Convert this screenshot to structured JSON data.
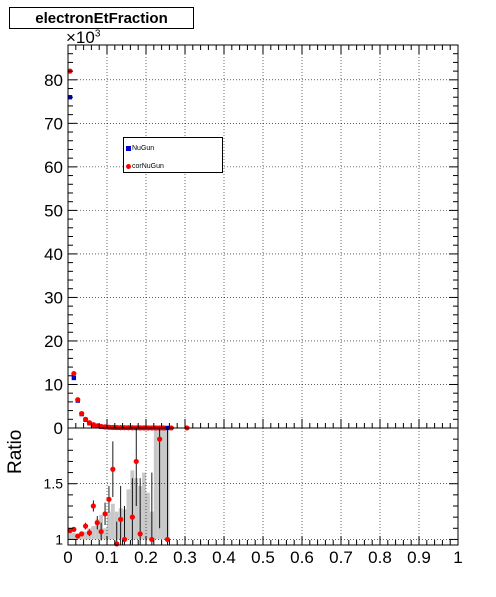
{
  "chart_data": [
    {
      "type": "scatter",
      "title": "electronEtFraction",
      "y_scale_label": "×10",
      "y_scale_exp": "3",
      "xlim": [
        0,
        1
      ],
      "ylim": [
        0,
        88
      ],
      "y_ticks": [
        0,
        10,
        20,
        30,
        40,
        50,
        60,
        70,
        80
      ],
      "y_tick_labels": [
        "0",
        "10",
        "20",
        "30",
        "40",
        "50",
        "60",
        "70",
        "80"
      ],
      "grid": true,
      "legend_position": "top-left",
      "series": [
        {
          "name": "NuGun",
          "color": "#0000cc",
          "marker": "square",
          "points": [
            [
              0.005,
              76
            ],
            [
              0.015,
              11.5
            ],
            [
              0.025,
              6.3
            ],
            [
              0.035,
              3.2
            ],
            [
              0.045,
              1.9
            ],
            [
              0.055,
              1.1
            ],
            [
              0.065,
              0.7
            ],
            [
              0.075,
              0.45
            ],
            [
              0.085,
              0.3
            ],
            [
              0.095,
              0.22
            ],
            [
              0.105,
              0.15
            ],
            [
              0.115,
              0.11
            ],
            [
              0.125,
              0.09
            ],
            [
              0.135,
              0.07
            ],
            [
              0.145,
              0.06
            ],
            [
              0.155,
              0.05
            ],
            [
              0.165,
              0.04
            ],
            [
              0.175,
              0.03
            ],
            [
              0.185,
              0.03
            ],
            [
              0.195,
              0.02
            ],
            [
              0.205,
              0.02
            ],
            [
              0.215,
              0.02
            ],
            [
              0.225,
              0.01
            ],
            [
              0.235,
              0.01
            ],
            [
              0.245,
              0.01
            ],
            [
              0.255,
              0.01
            ]
          ]
        },
        {
          "name": "corNuGun",
          "color": "#ff0000",
          "marker": "circle",
          "points": [
            [
              0.005,
              82
            ],
            [
              0.015,
              12.5
            ],
            [
              0.025,
              6.5
            ],
            [
              0.035,
              3.3
            ],
            [
              0.045,
              2.0
            ],
            [
              0.055,
              1.2
            ],
            [
              0.065,
              0.75
            ],
            [
              0.075,
              0.5
            ],
            [
              0.085,
              0.35
            ],
            [
              0.095,
              0.25
            ],
            [
              0.105,
              0.18
            ],
            [
              0.115,
              0.13
            ],
            [
              0.125,
              0.1
            ],
            [
              0.135,
              0.08
            ],
            [
              0.145,
              0.07
            ],
            [
              0.155,
              0.06
            ],
            [
              0.165,
              0.05
            ],
            [
              0.175,
              0.04
            ],
            [
              0.185,
              0.03
            ],
            [
              0.195,
              0.03
            ],
            [
              0.205,
              0.02
            ],
            [
              0.215,
              0.02
            ],
            [
              0.225,
              0.02
            ],
            [
              0.235,
              0.01
            ],
            [
              0.245,
              0.01
            ],
            [
              0.265,
              0.01
            ],
            [
              0.305,
              0.01
            ]
          ]
        }
      ]
    },
    {
      "type": "scatter",
      "ylabel": "Ratio",
      "xlim": [
        0,
        1
      ],
      "ylim": [
        0.95,
        2.0
      ],
      "y_ticks": [
        1,
        1.5
      ],
      "y_tick_labels": [
        "1",
        "1.5"
      ],
      "x_ticks": [
        0,
        0.1,
        0.2,
        0.3,
        0.4,
        0.5,
        0.6,
        0.7,
        0.8,
        0.9,
        1
      ],
      "x_tick_labels": [
        "0",
        "0.1",
        "0.2",
        "0.3",
        "0.4",
        "0.5",
        "0.6",
        "0.7",
        "0.8",
        "0.9",
        "1"
      ],
      "grid": true,
      "band": {
        "color": "#c8c8c8",
        "bins": [
          [
            0.0,
            0.01,
            1.08
          ],
          [
            0.01,
            0.02,
            1.06
          ],
          [
            0.02,
            0.03,
            1.04
          ],
          [
            0.03,
            0.04,
            1.05
          ],
          [
            0.04,
            0.05,
            1.07
          ],
          [
            0.05,
            0.06,
            1.1
          ],
          [
            0.06,
            0.07,
            1.12
          ],
          [
            0.07,
            0.08,
            1.18
          ],
          [
            0.08,
            0.09,
            1.22
          ],
          [
            0.09,
            0.1,
            1.1
          ],
          [
            0.1,
            0.11,
            1.25
          ],
          [
            0.11,
            0.12,
            1.32
          ],
          [
            0.12,
            0.13,
            1.25
          ],
          [
            0.13,
            0.14,
            1.28
          ],
          [
            0.14,
            0.15,
            1.27
          ],
          [
            0.15,
            0.16,
            1.45
          ],
          [
            0.16,
            0.17,
            1.62
          ],
          [
            0.17,
            0.18,
            1.55
          ],
          [
            0.18,
            0.19,
            1.48
          ],
          [
            0.19,
            0.2,
            1.6
          ],
          [
            0.2,
            0.21,
            1.42
          ],
          [
            0.21,
            0.22,
            1.25
          ],
          [
            0.22,
            0.23,
            2.0
          ],
          [
            0.23,
            0.24,
            1.98
          ],
          [
            0.24,
            0.25,
            2.0
          ],
          [
            0.25,
            0.26,
            2.0
          ]
        ]
      },
      "ratio_points": {
        "color": "#ff0000",
        "points": [
          [
            0.005,
            1.08,
            0.0
          ],
          [
            0.015,
            1.09,
            0.0
          ],
          [
            0.025,
            1.03,
            0.01
          ],
          [
            0.035,
            1.05,
            0.01
          ],
          [
            0.045,
            1.12,
            0.03
          ],
          [
            0.055,
            1.06,
            0.03
          ],
          [
            0.065,
            1.3,
            0.05
          ],
          [
            0.075,
            1.15,
            0.06
          ],
          [
            0.085,
            1.07,
            0.08
          ],
          [
            0.095,
            1.23,
            0.1
          ],
          [
            0.105,
            1.36,
            0.12
          ],
          [
            0.115,
            1.63,
            0.25
          ],
          [
            0.125,
            0.96,
            0.2
          ],
          [
            0.135,
            1.18,
            0.3
          ],
          [
            0.145,
            1.0,
            0.3
          ],
          [
            0.165,
            1.2,
            0.35
          ],
          [
            0.175,
            1.7,
            0.4
          ],
          [
            0.185,
            1.05,
            0.5
          ],
          [
            0.215,
            1.0,
            0.6
          ],
          [
            0.235,
            1.9,
            0.8
          ],
          [
            0.255,
            1.0,
            1.0
          ]
        ]
      }
    }
  ]
}
